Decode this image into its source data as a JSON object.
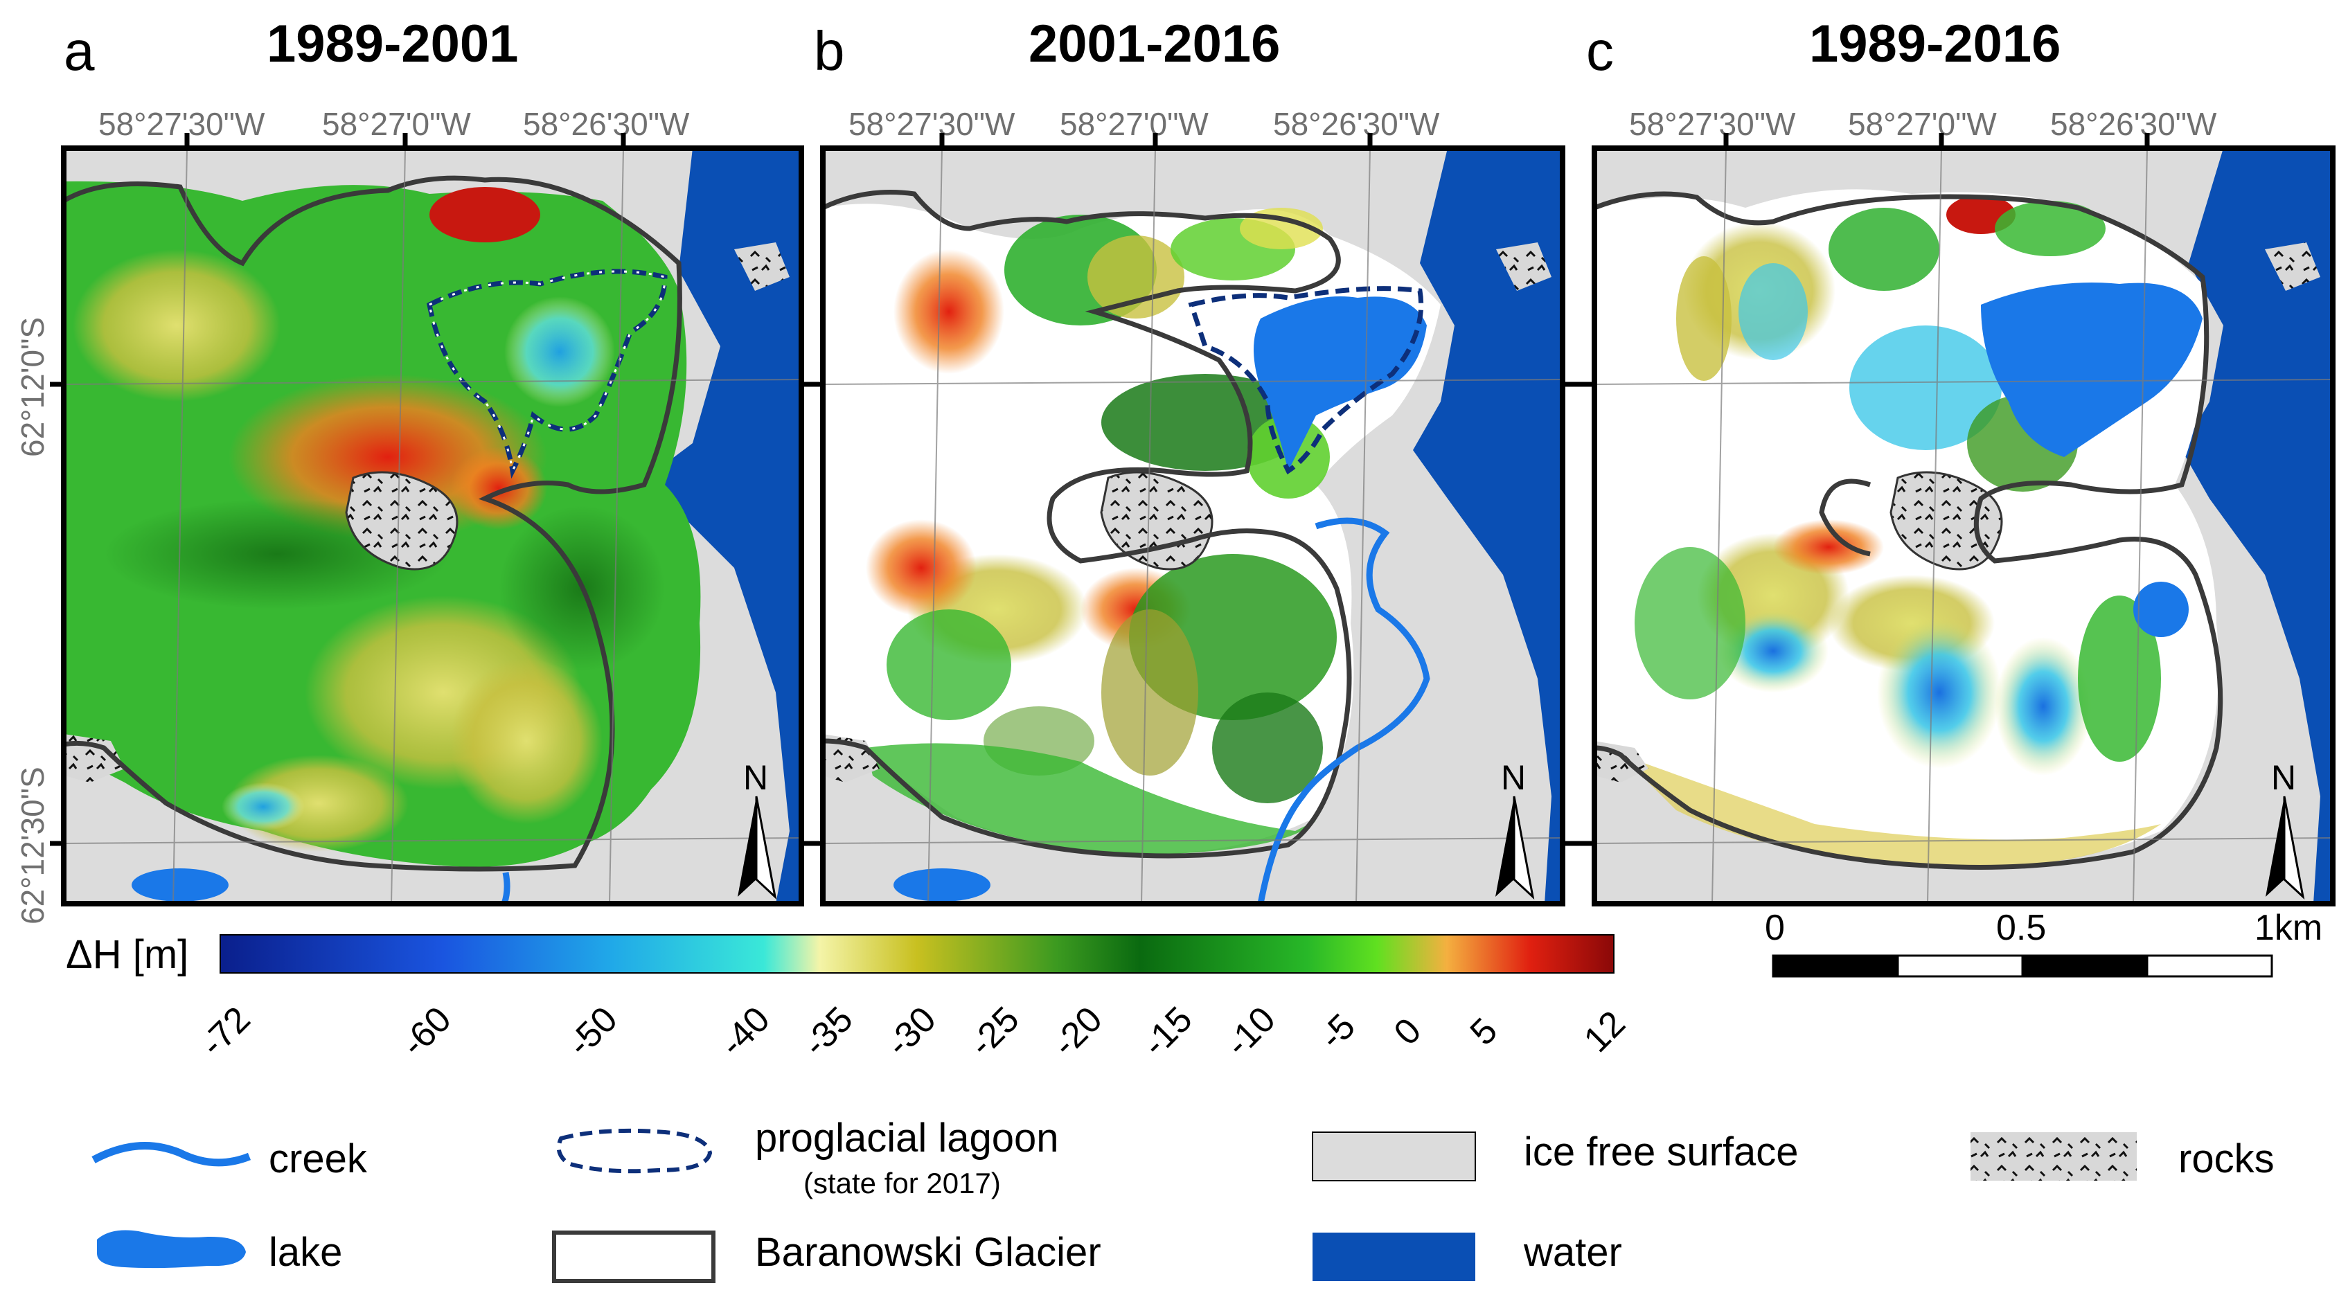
{
  "figure": {
    "panels": [
      {
        "letter": "a",
        "title": "1989-2001"
      },
      {
        "letter": "b",
        "title": "2001-2016"
      },
      {
        "letter": "c",
        "title": "1989-2016"
      }
    ],
    "lon_labels": [
      "58°27'30\"W",
      "58°27'0\"W",
      "58°26'30\"W"
    ],
    "lat_labels": [
      "62°12'0\"S",
      "62°12'30\"S"
    ],
    "north_label": "N",
    "colorbar": {
      "label": "ΔH [m]",
      "ticks": [
        "-72",
        "-60",
        "-50",
        "-40",
        "-35",
        "-30",
        "-25",
        "-20",
        "-15",
        "-10",
        "-5",
        "0",
        "5",
        "12"
      ]
    },
    "scalebar": {
      "labels": [
        "0",
        "0.5",
        "1km"
      ]
    },
    "legend": {
      "creek": "creek",
      "lake": "lake",
      "lagoon": "proglacial lagoon",
      "lagoon_note": "(state for 2017)",
      "glacier": "Baranowski Glacier",
      "ice_free": "ice free surface",
      "water": "water",
      "rocks": "rocks"
    },
    "colors": {
      "water": "#0a4fb4",
      "lake": "#1a78e8",
      "ice_free": "#dcdcdc",
      "outline": "#3a3a3a",
      "lagoon": "#0d2f7a"
    }
  }
}
